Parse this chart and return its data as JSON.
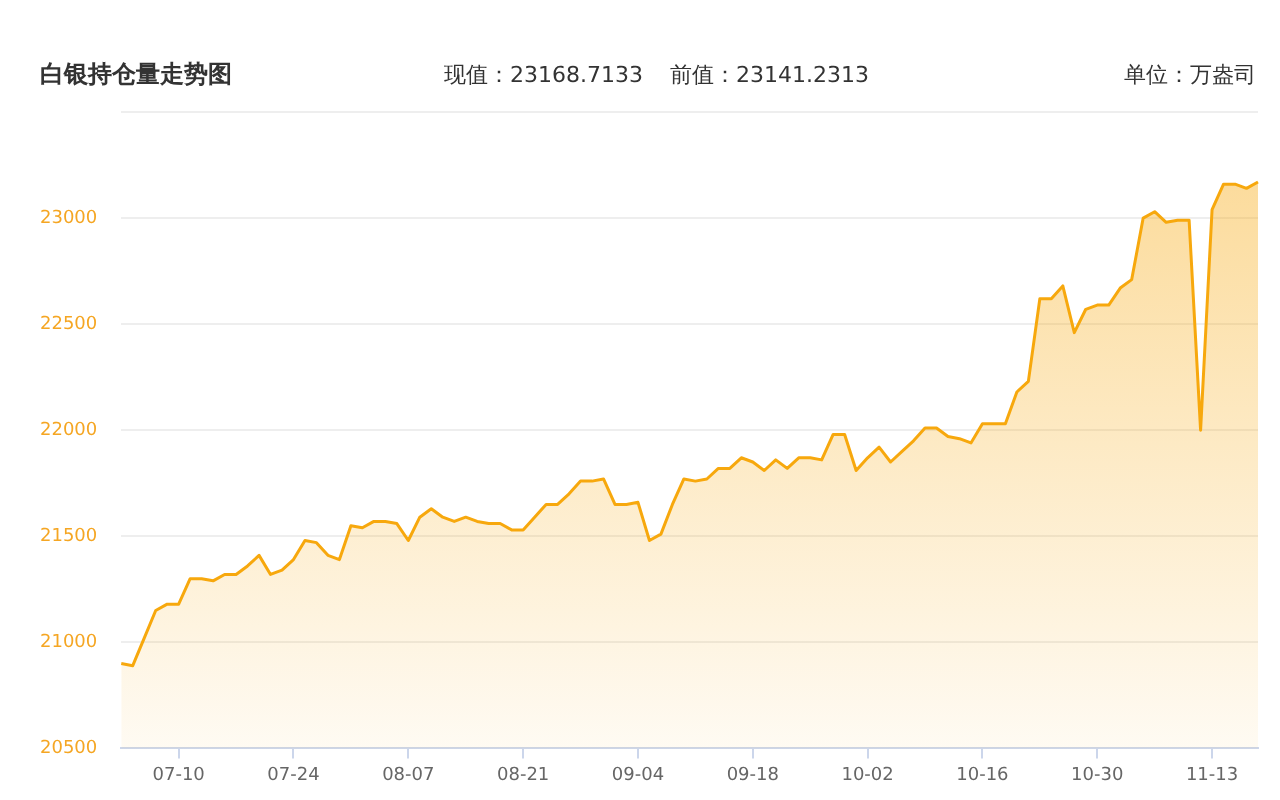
{
  "chart_data": {
    "type": "area",
    "title": "白银持仓量走势图",
    "annotations": [
      "现值：23168.7133",
      "前值：23141.2313",
      "单位：万盎司"
    ],
    "categories": [
      null,
      null,
      null,
      null,
      null,
      "07-10",
      null,
      null,
      null,
      null,
      null,
      null,
      null,
      null,
      null,
      "07-24",
      null,
      null,
      null,
      null,
      null,
      null,
      null,
      null,
      null,
      "08-07",
      null,
      null,
      null,
      null,
      null,
      null,
      null,
      null,
      null,
      "08-21",
      null,
      null,
      null,
      null,
      null,
      null,
      null,
      null,
      null,
      "09-04",
      null,
      null,
      null,
      null,
      null,
      null,
      null,
      null,
      null,
      "09-18",
      null,
      null,
      null,
      null,
      null,
      null,
      null,
      null,
      null,
      "10-02",
      null,
      null,
      null,
      null,
      null,
      null,
      null,
      null,
      null,
      "10-16",
      null,
      null,
      null,
      null,
      null,
      null,
      null,
      null,
      null,
      "10-30",
      null,
      null,
      null,
      null,
      null,
      null,
      null,
      null,
      null,
      "11-13",
      null,
      null,
      null,
      null
    ],
    "series": [
      {
        "color": "#f7a80d",
        "values": [
          20900,
          20890,
          21020,
          21150,
          21180,
          21180,
          21300,
          21300,
          21290,
          21320,
          21320,
          21360,
          21410,
          21320,
          21340,
          21390,
          21480,
          21470,
          21410,
          21390,
          21550,
          21540,
          21570,
          21570,
          21560,
          21480,
          21590,
          21630,
          21590,
          21570,
          21590,
          21570,
          21560,
          21560,
          21530,
          21530,
          21590,
          21650,
          21650,
          21700,
          21760,
          21760,
          21770,
          21650,
          21650,
          21660,
          21480,
          21510,
          21650,
          21770,
          21760,
          21770,
          21820,
          21820,
          21870,
          21850,
          21810,
          21860,
          21820,
          21870,
          21870,
          21860,
          21980,
          21980,
          21810,
          21870,
          21920,
          21850,
          21900,
          21950,
          22010,
          22010,
          21970,
          21960,
          21940,
          22030,
          22030,
          22030,
          22180,
          22230,
          22620,
          22620,
          22680,
          22460,
          22570,
          22590,
          22590,
          22670,
          22710,
          23000,
          23030,
          22980,
          22990,
          22990,
          22000,
          23040,
          23160,
          23160,
          23140,
          23170
        ]
      }
    ],
    "ylim": [
      20500,
      23500
    ],
    "yticks": [
      20500,
      21000,
      21500,
      22000,
      22500,
      23000,
      {
        "value": 23500,
        "label": null
      }
    ],
    "grid": "y",
    "legend": false
  }
}
